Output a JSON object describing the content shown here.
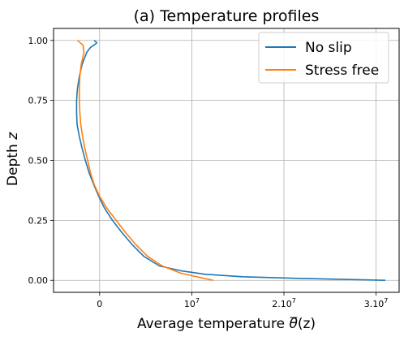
{
  "chart_data": {
    "type": "line",
    "title": "(a) Temperature profiles",
    "xlabel_pre": "Average temperature ",
    "xlabel_symbol": "θ",
    "xlabel_post": "(z)",
    "ylabel_pre": "Depth ",
    "ylabel_var": "z",
    "xlim": [
      -5000000,
      32500000
    ],
    "ylim": [
      -0.05,
      1.05
    ],
    "x_ticks": [
      {
        "value": 0,
        "mantissa": "0",
        "exp": ""
      },
      {
        "value": 10000000,
        "mantissa": "10",
        "exp": "7"
      },
      {
        "value": 20000000,
        "mantissa": "2.10",
        "exp": "7"
      },
      {
        "value": 30000000,
        "mantissa": "3.10",
        "exp": "7"
      }
    ],
    "y_ticks": [
      {
        "value": 0,
        "label": "0.00"
      },
      {
        "value": 0.25,
        "label": "0.25"
      },
      {
        "value": 0.5,
        "label": "0.50"
      },
      {
        "value": 0.75,
        "label": "0.75"
      },
      {
        "value": 1.0,
        "label": "1.00"
      }
    ],
    "grid": true,
    "legend_position": "top-right",
    "series": [
      {
        "name": "No slip",
        "color": "#1f77b4",
        "points": [
          [
            -600000,
            1.0
          ],
          [
            -300000,
            0.99
          ],
          [
            -450000,
            0.985
          ],
          [
            -1000000,
            0.97
          ],
          [
            -1400000,
            0.95
          ],
          [
            -1900000,
            0.9
          ],
          [
            -2200000,
            0.85
          ],
          [
            -2400000,
            0.8
          ],
          [
            -2500000,
            0.75
          ],
          [
            -2500000,
            0.7
          ],
          [
            -2450000,
            0.65
          ],
          [
            -2200000,
            0.6
          ],
          [
            -1900000,
            0.55
          ],
          [
            -1550000,
            0.5
          ],
          [
            -1150000,
            0.45
          ],
          [
            -650000,
            0.4
          ],
          [
            -100000,
            0.35
          ],
          [
            550000,
            0.3
          ],
          [
            1400000,
            0.25
          ],
          [
            2400000,
            0.2
          ],
          [
            3500000,
            0.15
          ],
          [
            4800000,
            0.1
          ],
          [
            6500000,
            0.06
          ],
          [
            8800000,
            0.04
          ],
          [
            11500000,
            0.025
          ],
          [
            15500000,
            0.015
          ],
          [
            22000000,
            0.008
          ],
          [
            31000000,
            0.0
          ]
        ]
      },
      {
        "name": "Stress free",
        "color": "#ff7f0e",
        "points": [
          [
            -2400000,
            1.0
          ],
          [
            -1800000,
            0.98
          ],
          [
            -1700000,
            0.95
          ],
          [
            -2000000,
            0.9
          ],
          [
            -2150000,
            0.85
          ],
          [
            -2200000,
            0.8
          ],
          [
            -2200000,
            0.75
          ],
          [
            -2150000,
            0.7
          ],
          [
            -2050000,
            0.65
          ],
          [
            -1850000,
            0.6
          ],
          [
            -1600000,
            0.55
          ],
          [
            -1300000,
            0.5
          ],
          [
            -1000000,
            0.45
          ],
          [
            -600000,
            0.4
          ],
          [
            0,
            0.35
          ],
          [
            800000,
            0.3
          ],
          [
            1800000,
            0.25
          ],
          [
            2800000,
            0.2
          ],
          [
            3900000,
            0.15
          ],
          [
            5200000,
            0.1
          ],
          [
            6800000,
            0.06
          ],
          [
            8800000,
            0.03
          ],
          [
            10900000,
            0.012
          ],
          [
            12300000,
            0.0
          ]
        ]
      }
    ]
  }
}
